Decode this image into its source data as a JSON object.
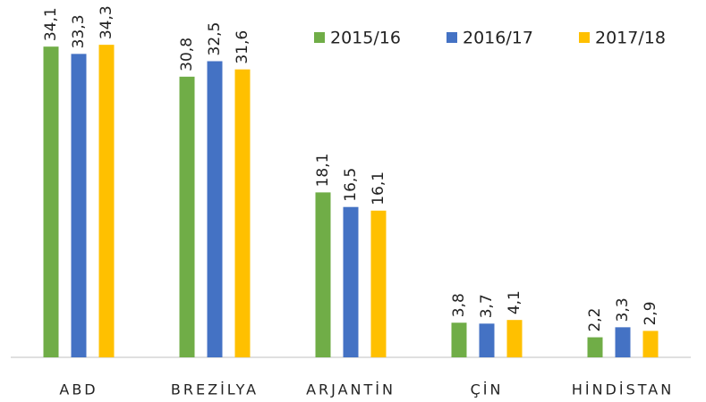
{
  "chart_data": {
    "type": "bar",
    "categories": [
      "ABD",
      "BREZİLYA",
      "ARJANTİN",
      "ÇİN",
      "HİNDİSTAN"
    ],
    "series": [
      {
        "name": "2015/16",
        "color": "#70ad47",
        "values": [
          34.1,
          30.8,
          18.1,
          3.8,
          2.2
        ],
        "value_labels": [
          "34,1",
          "30,8",
          "18,1",
          "3,8",
          "2,2"
        ]
      },
      {
        "name": "2016/17",
        "color": "#4472c4",
        "values": [
          33.3,
          32.5,
          16.5,
          3.7,
          3.3
        ],
        "value_labels": [
          "33,3",
          "32,5",
          "16,5",
          "3,7",
          "3,3"
        ]
      },
      {
        "name": "2017/18",
        "color": "#ffc000",
        "values": [
          34.3,
          31.6,
          16.1,
          4.1,
          2.9
        ],
        "value_labels": [
          "34,3",
          "31,6",
          "16,1",
          "4,1",
          "2,9"
        ]
      }
    ],
    "ylim": [
      0,
      35
    ],
    "legend": "top-right"
  }
}
